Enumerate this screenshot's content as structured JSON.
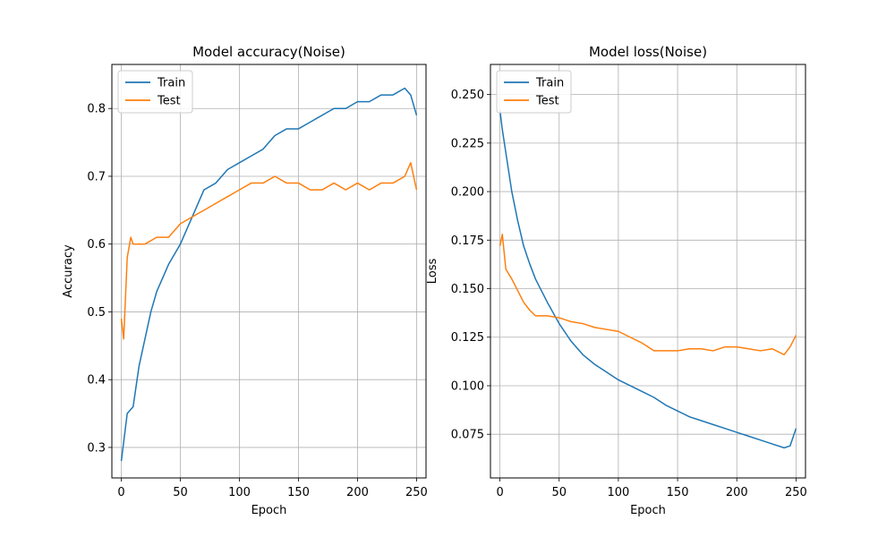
{
  "colors": {
    "train": "#1f77b4",
    "test": "#ff7f0e",
    "grid": "#b0b0b0",
    "frame": "#000000"
  },
  "chart_data": [
    {
      "type": "line",
      "title": "Model accuracy(Noise)",
      "xlabel": "Epoch",
      "ylabel": "Accuracy",
      "xlim": [
        -8,
        258
      ],
      "ylim": [
        0.255,
        0.865
      ],
      "xticks": [
        0,
        50,
        100,
        150,
        200,
        250
      ],
      "yticks": [
        0.3,
        0.4,
        0.5,
        0.6,
        0.7,
        0.8
      ],
      "ytick_labels": [
        "0.3",
        "0.4",
        "0.5",
        "0.6",
        "0.7",
        "0.8"
      ],
      "grid": true,
      "legend": "top-left",
      "series": [
        {
          "name": "Train",
          "color": "#1f77b4",
          "x": [
            0,
            5,
            10,
            15,
            20,
            25,
            30,
            40,
            50,
            60,
            70,
            80,
            90,
            100,
            110,
            120,
            130,
            140,
            150,
            160,
            170,
            180,
            190,
            200,
            210,
            220,
            230,
            240,
            245,
            250
          ],
          "values": [
            0.28,
            0.35,
            0.36,
            0.42,
            0.46,
            0.5,
            0.53,
            0.57,
            0.6,
            0.64,
            0.68,
            0.69,
            0.71,
            0.72,
            0.73,
            0.74,
            0.76,
            0.77,
            0.77,
            0.78,
            0.79,
            0.8,
            0.8,
            0.81,
            0.81,
            0.82,
            0.82,
            0.83,
            0.82,
            0.79
          ]
        },
        {
          "name": "Test",
          "color": "#ff7f0e",
          "x": [
            0,
            2,
            5,
            8,
            10,
            20,
            30,
            40,
            50,
            60,
            70,
            80,
            90,
            100,
            110,
            120,
            130,
            140,
            150,
            160,
            170,
            180,
            190,
            200,
            210,
            220,
            230,
            240,
            245,
            250
          ],
          "values": [
            0.49,
            0.46,
            0.58,
            0.61,
            0.6,
            0.6,
            0.61,
            0.61,
            0.63,
            0.64,
            0.65,
            0.66,
            0.67,
            0.68,
            0.69,
            0.69,
            0.7,
            0.69,
            0.69,
            0.68,
            0.68,
            0.69,
            0.68,
            0.69,
            0.68,
            0.69,
            0.69,
            0.7,
            0.72,
            0.68
          ]
        }
      ]
    },
    {
      "type": "line",
      "title": "Model loss(Noise)",
      "xlabel": "Epoch",
      "ylabel": "Loss",
      "xlim": [
        -8,
        258
      ],
      "ylim": [
        0.0525,
        0.2655
      ],
      "xticks": [
        0,
        50,
        100,
        150,
        200,
        250
      ],
      "yticks": [
        0.075,
        0.1,
        0.125,
        0.15,
        0.175,
        0.2,
        0.225,
        0.25
      ],
      "ytick_labels": [
        "0.075",
        "0.100",
        "0.125",
        "0.150",
        "0.175",
        "0.200",
        "0.225",
        "0.250"
      ],
      "grid": true,
      "legend": "top-left",
      "series": [
        {
          "name": "Train",
          "color": "#1f77b4",
          "x": [
            0,
            2,
            5,
            10,
            15,
            20,
            25,
            30,
            40,
            50,
            60,
            70,
            80,
            90,
            100,
            110,
            120,
            130,
            140,
            150,
            160,
            170,
            180,
            190,
            200,
            210,
            220,
            230,
            240,
            245,
            250
          ],
          "values": [
            0.242,
            0.232,
            0.22,
            0.2,
            0.185,
            0.172,
            0.163,
            0.155,
            0.143,
            0.132,
            0.123,
            0.116,
            0.111,
            0.107,
            0.103,
            0.1,
            0.097,
            0.094,
            0.09,
            0.087,
            0.084,
            0.082,
            0.08,
            0.078,
            0.076,
            0.074,
            0.072,
            0.07,
            0.068,
            0.069,
            0.078
          ]
        },
        {
          "name": "Test",
          "color": "#ff7f0e",
          "x": [
            0,
            2,
            5,
            10,
            15,
            20,
            25,
            30,
            40,
            50,
            60,
            70,
            80,
            90,
            100,
            110,
            120,
            130,
            140,
            150,
            160,
            170,
            180,
            190,
            200,
            210,
            220,
            230,
            240,
            245,
            250
          ],
          "values": [
            0.172,
            0.178,
            0.16,
            0.155,
            0.149,
            0.143,
            0.139,
            0.136,
            0.136,
            0.135,
            0.133,
            0.132,
            0.13,
            0.129,
            0.128,
            0.125,
            0.122,
            0.118,
            0.118,
            0.118,
            0.119,
            0.119,
            0.118,
            0.12,
            0.12,
            0.119,
            0.118,
            0.119,
            0.116,
            0.12,
            0.126
          ]
        }
      ]
    }
  ]
}
